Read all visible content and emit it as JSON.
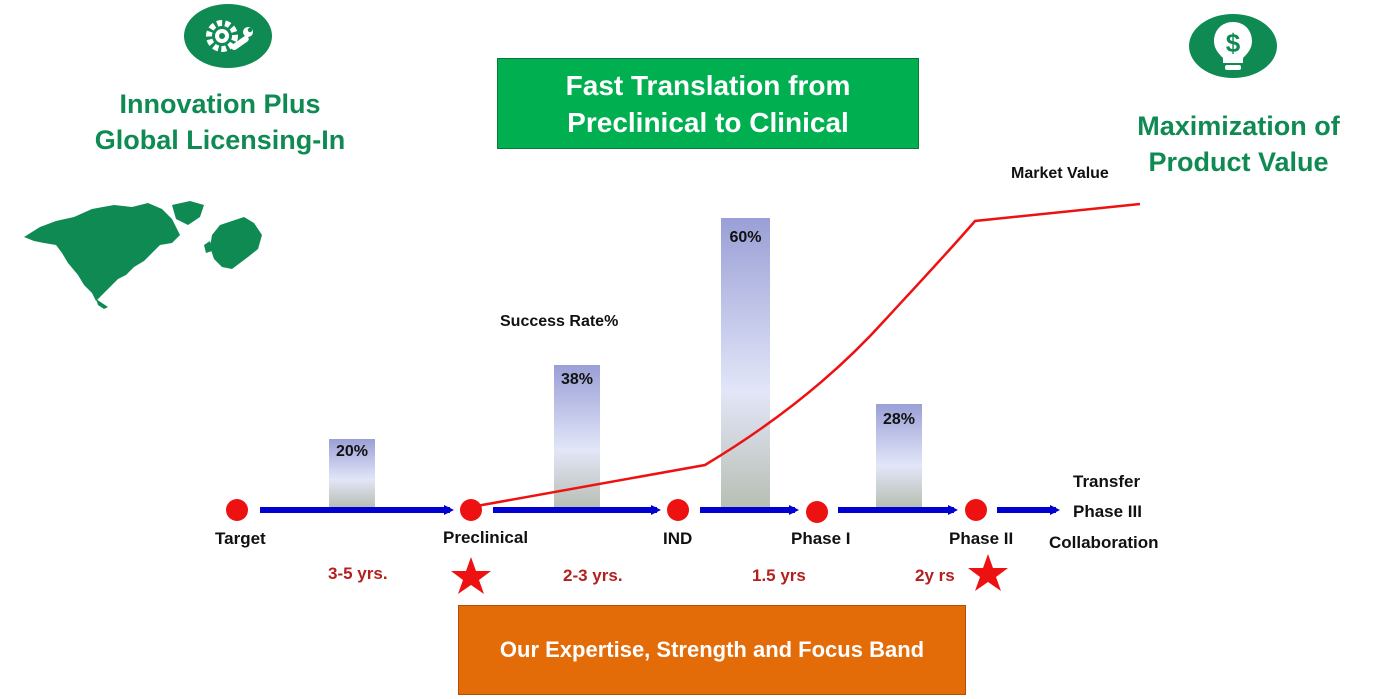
{
  "left_panel": {
    "title_line1": "Innovation Plus",
    "title_line2": "Global Licensing-In",
    "icon": "gear-wrench-icon"
  },
  "right_panel": {
    "title_line1": "Maximization of",
    "title_line2": "Product Value",
    "icon": "dollar-bulb-icon"
  },
  "banner": {
    "line1": "Fast Translation from",
    "line2": "Preclinical to Clinical"
  },
  "market_value_label": "Market Value",
  "success_rate_label": "Success Rate%",
  "stages": [
    {
      "label": "Target"
    },
    {
      "label": "Preclinical"
    },
    {
      "label": "IND"
    },
    {
      "label": "Phase I"
    },
    {
      "label": "Phase II"
    }
  ],
  "end_labels": [
    "Transfer",
    "Phase III",
    "Collaboration"
  ],
  "durations": [
    "3-5 yrs.",
    "2-3 yrs.",
    "1.5 yrs",
    "2y rs"
  ],
  "success_rates": [
    {
      "label": "20%",
      "value": 20
    },
    {
      "label": "38%",
      "value": 38
    },
    {
      "label": "60%",
      "value": 60
    },
    {
      "label": "28%",
      "value": 28
    }
  ],
  "focus_band": "Our Expertise, Strength and Focus Band",
  "colors": {
    "brand_green": "#0f8a52",
    "banner_green": "#00b050",
    "arrow_blue": "#0000d0",
    "dot_red": "#ee1111",
    "curve_red": "#ee1111",
    "band_orange": "#e36c09",
    "duration_red": "#b3201f"
  }
}
